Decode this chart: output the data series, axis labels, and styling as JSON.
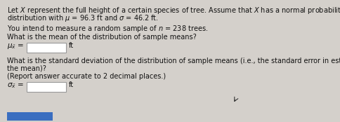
{
  "bg_color": "#d4d0cb",
  "text_color": "#111111",
  "box_color": "#ffffff",
  "box_border": "#999999",
  "btn_color": "#3a6ec0",
  "line1": "Let $X$ represent the full height of a certain species of tree. Assume that $X$ has a normal probability",
  "line2": "distribution with $\\mu$ = 96.3 ft and $\\sigma$ = 46.2 ft.",
  "line3": "You intend to measure a random sample of $n$ = 238 trees.",
  "line4": "What is the mean of the distribution of sample means?",
  "mu_label": "$\\mu_{\\bar{x}}$ =",
  "mu_unit": "ft",
  "line5": "What is the standard deviation of the distribution of sample means (i.e., the standard error in estimating",
  "line6": "the mean)?",
  "line7": "(Report answer accurate to 2 decimal places.)",
  "sigma_label": "$\\sigma_{\\bar{x}}$ =",
  "sigma_unit": "ft",
  "font_size": 7.0,
  "label_font_size": 7.5,
  "figw": 4.85,
  "figh": 1.74,
  "dpi": 100
}
